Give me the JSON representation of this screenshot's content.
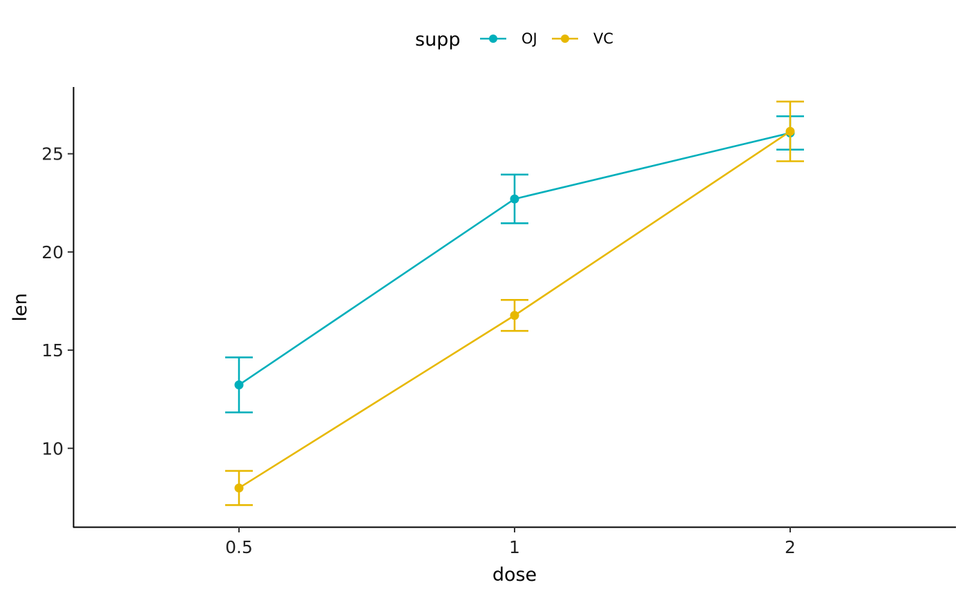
{
  "chart_data": {
    "type": "line",
    "xlabel": "dose",
    "ylabel": "len",
    "categories": [
      "0.5",
      "1",
      "2"
    ],
    "y_ticks": [
      10,
      15,
      20,
      25
    ],
    "ylim": [
      6.0,
      28.4
    ],
    "grid": false,
    "legend": {
      "title": "supp",
      "position": "top"
    },
    "series": [
      {
        "name": "OJ",
        "color": "#00AFBB",
        "values": [
          13.23,
          22.7,
          26.06
        ],
        "error_low": [
          11.83,
          21.46,
          25.21
        ],
        "error_high": [
          14.63,
          23.94,
          26.91
        ]
      },
      {
        "name": "VC",
        "color": "#E7B800",
        "values": [
          7.98,
          16.77,
          26.14
        ],
        "error_low": [
          7.11,
          15.98,
          24.62
        ],
        "error_high": [
          8.85,
          17.56,
          27.66
        ]
      }
    ]
  }
}
